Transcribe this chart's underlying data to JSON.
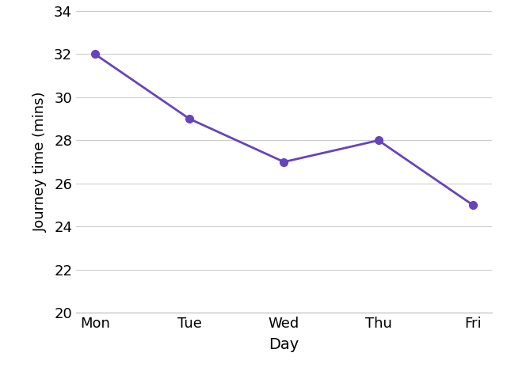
{
  "days": [
    "Mon",
    "Tue",
    "Wed",
    "Thu",
    "Fri"
  ],
  "journey_times": [
    32,
    29,
    27,
    28,
    25
  ],
  "line_color": "#6644bb",
  "marker": "o",
  "marker_size": 7,
  "linewidth": 2.0,
  "xlabel": "Day",
  "ylabel": "Journey time (mins)",
  "ylim": [
    20,
    34
  ],
  "yticks": [
    20,
    22,
    24,
    26,
    28,
    30,
    32,
    34
  ],
  "xlabel_fontsize": 14,
  "ylabel_fontsize": 13,
  "tick_fontsize": 13,
  "background_color": "#ffffff",
  "grid_color": "#cccccc",
  "grid_linewidth": 0.8,
  "spine_color": "#bbbbbb"
}
